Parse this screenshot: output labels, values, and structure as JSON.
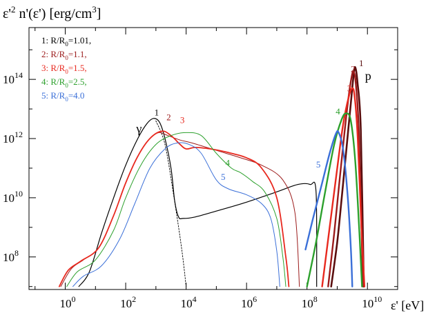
{
  "chart_data": {
    "type": "line",
    "title": "ε'² n'(ε') [erg/cm³]",
    "title_parts": {
      "base": "ε'",
      "exp1": "2",
      "mid": " n'(ε') [erg/cm",
      "exp2": "3",
      "end": "]"
    },
    "xlabel": "ε' [eV]",
    "ylabel": "ε'² n'(ε') [erg/cm³]",
    "x_scale": "log10",
    "y_scale": "log10",
    "xlim_log10": [
      -1.2,
      11.0
    ],
    "ylim_log10": [
      6.9,
      15.75
    ],
    "x_ticks": [
      {
        "exp": 0,
        "base": "10",
        "sup": "0"
      },
      {
        "exp": 2,
        "base": "10",
        "sup": "2"
      },
      {
        "exp": 4,
        "base": "10",
        "sup": "4"
      },
      {
        "exp": 6,
        "base": "10",
        "sup": "6"
      },
      {
        "exp": 8,
        "base": "10",
        "sup": "8"
      },
      {
        "exp": 10,
        "base": "10",
        "sup": "10"
      }
    ],
    "y_ticks": [
      {
        "exp": 8,
        "base": "10",
        "sup": "8"
      },
      {
        "exp": 10,
        "base": "10",
        "sup": "10"
      },
      {
        "exp": 12,
        "base": "10",
        "sup": "12"
      },
      {
        "exp": 14,
        "base": "10",
        "sup": "14"
      }
    ],
    "legend": [
      {
        "num": "1",
        "label_pre": ": R/R",
        "sub": "0",
        "label_post": "=1.01,",
        "color": "#000000"
      },
      {
        "num": "2",
        "label_pre": ": R/R",
        "sub": "0",
        "label_post": "=1.1,",
        "color": "#9b1a1a"
      },
      {
        "num": "3",
        "label_pre": ": R/R",
        "sub": "0",
        "label_post": "=1.5,",
        "color": "#e8281e"
      },
      {
        "num": "4",
        "label_pre": ": R/R",
        "sub": "0",
        "label_post": "=2.5,",
        "color": "#2ca02c"
      },
      {
        "num": "5",
        "label_pre": ": R/R",
        "sub": "0",
        "label_post": "=4.0",
        "color": "#3a6fd8"
      }
    ],
    "particle_labels": {
      "gamma": "γ",
      "proton": "p"
    },
    "series": [
      {
        "name": "photons R/R0=1.01",
        "id": "1",
        "particle": "gamma",
        "color": "#000000",
        "width": 1.2,
        "points": [
          [
            0.45,
            7.0
          ],
          [
            0.8,
            7.5
          ],
          [
            1.2,
            8.8
          ],
          [
            1.6,
            10.0
          ],
          [
            2.0,
            11.1
          ],
          [
            2.4,
            12.0
          ],
          [
            2.7,
            12.5
          ],
          [
            2.92,
            12.68
          ],
          [
            3.12,
            12.55
          ],
          [
            3.3,
            12.0
          ],
          [
            3.5,
            11.0
          ],
          [
            3.62,
            9.9
          ],
          [
            3.75,
            9.35
          ],
          [
            3.9,
            9.3
          ],
          [
            4.3,
            9.35
          ],
          [
            5.0,
            9.55
          ],
          [
            6.0,
            9.85
          ],
          [
            7.0,
            10.2
          ],
          [
            7.7,
            10.45
          ],
          [
            8.1,
            10.45
          ],
          [
            8.3,
            10.2
          ],
          [
            8.32,
            7.0
          ]
        ]
      },
      {
        "name": "photon cutoff (dotted)",
        "id": "1d",
        "particle": "gamma",
        "color": "#000000",
        "width": 0.9,
        "dash": "2,2",
        "points": [
          [
            3.0,
            12.6
          ],
          [
            3.3,
            11.8
          ],
          [
            3.6,
            10.0
          ],
          [
            3.85,
            8.3
          ],
          [
            4.0,
            7.0
          ]
        ]
      },
      {
        "name": "photons R/R0=1.1",
        "id": "2",
        "particle": "gamma",
        "color": "#9b1a1a",
        "width": 1.0,
        "points": [
          [
            -0.15,
            7.0
          ],
          [
            0.2,
            7.6
          ],
          [
            0.6,
            7.9
          ],
          [
            1.1,
            8.3
          ],
          [
            1.6,
            9.4
          ],
          [
            2.0,
            10.5
          ],
          [
            2.4,
            11.4
          ],
          [
            2.8,
            12.0
          ],
          [
            3.1,
            12.2
          ],
          [
            3.4,
            12.1
          ],
          [
            3.8,
            11.95
          ],
          [
            4.2,
            11.85
          ],
          [
            5.0,
            11.6
          ],
          [
            5.8,
            11.35
          ],
          [
            6.5,
            11.1
          ],
          [
            7.2,
            10.6
          ],
          [
            7.6,
            9.5
          ],
          [
            7.75,
            7.0
          ]
        ]
      },
      {
        "name": "photons R/R0=1.5",
        "id": "3",
        "particle": "gamma",
        "color": "#e8281e",
        "width": 1.8,
        "points": [
          [
            -0.2,
            7.0
          ],
          [
            0.1,
            7.55
          ],
          [
            0.5,
            7.85
          ],
          [
            1.1,
            8.3
          ],
          [
            1.6,
            9.4
          ],
          [
            2.0,
            10.5
          ],
          [
            2.4,
            11.4
          ],
          [
            2.8,
            12.0
          ],
          [
            3.2,
            12.25
          ],
          [
            3.5,
            12.1
          ],
          [
            3.8,
            11.8
          ],
          [
            4.0,
            11.65
          ],
          [
            4.3,
            11.7
          ],
          [
            4.8,
            11.65
          ],
          [
            5.3,
            11.55
          ],
          [
            6.0,
            11.35
          ],
          [
            6.5,
            11.0
          ],
          [
            7.0,
            10.0
          ],
          [
            7.3,
            8.0
          ],
          [
            7.4,
            7.0
          ]
        ]
      },
      {
        "name": "photons R/R0=2.5",
        "id": "4",
        "particle": "gamma",
        "color": "#2ca02c",
        "width": 1.0,
        "points": [
          [
            0.05,
            7.0
          ],
          [
            0.4,
            7.5
          ],
          [
            1.0,
            7.9
          ],
          [
            1.6,
            8.9
          ],
          [
            2.0,
            10.0
          ],
          [
            2.5,
            11.1
          ],
          [
            3.0,
            11.8
          ],
          [
            3.5,
            12.1
          ],
          [
            4.0,
            12.2
          ],
          [
            4.5,
            12.1
          ],
          [
            5.0,
            11.5
          ],
          [
            5.5,
            11.0
          ],
          [
            5.8,
            10.85
          ],
          [
            6.2,
            10.55
          ],
          [
            6.6,
            10.2
          ],
          [
            7.0,
            9.3
          ],
          [
            7.2,
            8.0
          ],
          [
            7.3,
            7.0
          ]
        ]
      },
      {
        "name": "photons R/R0=4.0",
        "id": "5",
        "particle": "gamma",
        "color": "#3a6fd8",
        "width": 1.0,
        "points": [
          [
            0.25,
            7.0
          ],
          [
            0.6,
            7.35
          ],
          [
            1.2,
            7.7
          ],
          [
            1.8,
            8.6
          ],
          [
            2.3,
            9.8
          ],
          [
            2.8,
            11.0
          ],
          [
            3.3,
            11.65
          ],
          [
            3.7,
            11.85
          ],
          [
            4.1,
            11.8
          ],
          [
            4.5,
            11.5
          ],
          [
            5.0,
            10.6
          ],
          [
            5.4,
            10.3
          ],
          [
            6.0,
            10.1
          ],
          [
            6.5,
            9.8
          ],
          [
            6.8,
            9.3
          ],
          [
            7.0,
            8.2
          ],
          [
            7.1,
            7.0
          ]
        ]
      },
      {
        "name": "protons R/R0=1.01",
        "id": "1",
        "particle": "proton",
        "color": "#5a0e0e",
        "width": 2.6,
        "points": [
          [
            8.8,
            7.0
          ],
          [
            9.0,
            8.5
          ],
          [
            9.15,
            10.0
          ],
          [
            9.3,
            11.6
          ],
          [
            9.45,
            13.2
          ],
          [
            9.55,
            14.2
          ],
          [
            9.6,
            14.4
          ],
          [
            9.67,
            13.9
          ],
          [
            9.78,
            12.3
          ],
          [
            9.88,
            7.0
          ]
        ]
      },
      {
        "name": "protons R/R0=1.1",
        "id": "2",
        "particle": "proton",
        "color": "#9b1a1a",
        "width": 2.4,
        "points": [
          [
            8.7,
            7.0
          ],
          [
            8.9,
            8.8
          ],
          [
            9.05,
            10.3
          ],
          [
            9.2,
            11.8
          ],
          [
            9.35,
            13.2
          ],
          [
            9.48,
            14.1
          ],
          [
            9.55,
            14.25
          ],
          [
            9.62,
            13.8
          ],
          [
            9.72,
            12.1
          ],
          [
            9.85,
            7.0
          ]
        ]
      },
      {
        "name": "protons R/R0=1.5",
        "id": "3",
        "particle": "proton",
        "color": "#e8281e",
        "width": 2.4,
        "points": [
          [
            8.5,
            7.0
          ],
          [
            8.75,
            9.0
          ],
          [
            9.0,
            11.0
          ],
          [
            9.2,
            12.5
          ],
          [
            9.38,
            13.4
          ],
          [
            9.5,
            13.7
          ],
          [
            9.58,
            13.4
          ],
          [
            9.68,
            12.0
          ],
          [
            9.8,
            9.0
          ],
          [
            9.9,
            7.0
          ]
        ]
      },
      {
        "name": "protons R/R0=2.5",
        "id": "4",
        "particle": "proton",
        "color": "#2ca02c",
        "width": 2.4,
        "points": [
          [
            8.0,
            7.0
          ],
          [
            8.3,
            8.5
          ],
          [
            8.6,
            10.2
          ],
          [
            8.9,
            11.8
          ],
          [
            9.15,
            12.65
          ],
          [
            9.3,
            12.85
          ],
          [
            9.45,
            12.6
          ],
          [
            9.6,
            11.2
          ],
          [
            9.75,
            8.5
          ],
          [
            9.82,
            7.0
          ]
        ]
      },
      {
        "name": "protons R/R0=4.0",
        "id": "5",
        "particle": "proton",
        "color": "#3a6fd8",
        "width": 2.4,
        "points": [
          [
            7.95,
            8.25
          ],
          [
            8.2,
            9.3
          ],
          [
            8.5,
            10.5
          ],
          [
            8.75,
            11.5
          ],
          [
            8.95,
            12.15
          ],
          [
            9.05,
            12.2
          ],
          [
            9.2,
            11.6
          ],
          [
            9.35,
            10.0
          ],
          [
            9.45,
            8.3
          ],
          [
            9.5,
            7.0
          ]
        ]
      }
    ],
    "curve_labels": [
      {
        "text": "1",
        "color": "#000000",
        "at": [
          2.95,
          12.78
        ]
      },
      {
        "text": "2",
        "color": "#9b1a1a",
        "at": [
          3.35,
          12.62
        ]
      },
      {
        "text": "3",
        "color": "#e8281e",
        "at": [
          3.8,
          12.52
        ]
      },
      {
        "text": "4",
        "color": "#2ca02c",
        "at": [
          5.3,
          11.08
        ]
      },
      {
        "text": "5",
        "color": "#3a6fd8",
        "at": [
          5.15,
          10.6
        ]
      },
      {
        "text": "1",
        "color": "#5a0e0e",
        "at": [
          9.72,
          14.45
        ]
      },
      {
        "text": "2",
        "color": "#9b1a1a",
        "at": [
          9.45,
          14.25
        ]
      },
      {
        "text": "3",
        "color": "#e8281e",
        "at": [
          9.33,
          13.6
        ]
      },
      {
        "text": "4",
        "color": "#2ca02c",
        "at": [
          8.95,
          12.82
        ]
      },
      {
        "text": "5",
        "color": "#3a6fd8",
        "at": [
          8.3,
          11.02
        ]
      }
    ],
    "gamma_label_at": [
      2.35,
      12.2
    ],
    "proton_label_at": [
      9.92,
      13.98
    ]
  }
}
